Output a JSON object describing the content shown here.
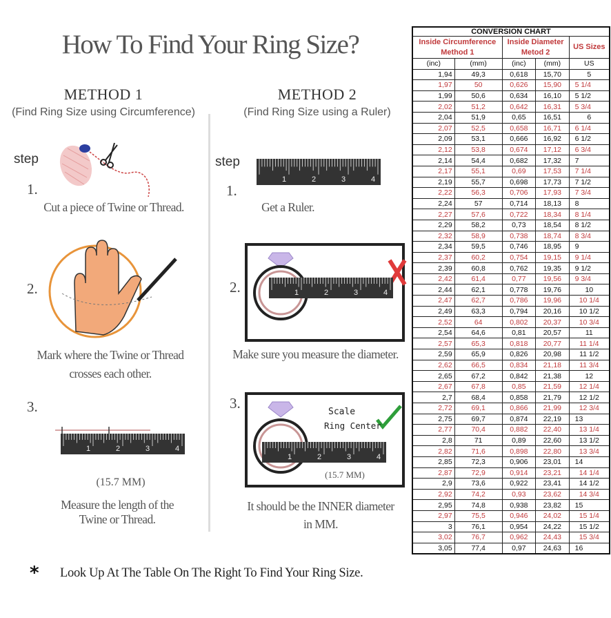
{
  "title": "How To Find Your Ring Size?",
  "method1": {
    "heading": "METHOD 1",
    "subtitle": "(Find Ring Size using Circumference)",
    "step_label": "step",
    "steps": [
      {
        "num": "1.",
        "lines": [
          "Cut a piece of  Twine or Thread."
        ]
      },
      {
        "num": "2.",
        "lines": [
          "Mark where the Twine or Thread",
          "crosses each other."
        ]
      },
      {
        "num": "3.",
        "measure": "(15.7 MM)",
        "lines": [
          "Measure the length of the",
          "Twine or Thread."
        ]
      }
    ]
  },
  "method2": {
    "heading": "METHOD 2",
    "subtitle": "(Find Ring Size using a Ruler)",
    "step_label": "step",
    "steps": [
      {
        "num": "1.",
        "lines": [
          "Get a Ruler."
        ]
      },
      {
        "num": "2.",
        "lines": [
          "Make sure you measure the diameter."
        ]
      },
      {
        "num": "3.",
        "scale_label": "Scale",
        "center_label": "Ring Center",
        "measure": "(15.7 MM)",
        "lines": [
          "It should be the INNER diameter",
          "in MM."
        ]
      }
    ]
  },
  "ruler_numbers": [
    "1",
    "2",
    "3",
    "4"
  ],
  "footer": {
    "marker": "*",
    "text": "Look Up At The Table On The Right To Find Your Ring Size."
  },
  "colors": {
    "accent_red": "#c0393b",
    "ruler": "#333333",
    "hand": "#f2a97a",
    "ring_outline": "#e8943a",
    "check": "#2e9e3a",
    "cross": "#e03a3a"
  },
  "icons": [
    "twine-spool-icon",
    "scissors-icon",
    "hand-icon",
    "pen-icon",
    "diamond-ring-icon",
    "cross-icon",
    "check-icon"
  ],
  "chart_data": {
    "type": "table",
    "title": "CONVERSION CHART",
    "groups": [
      "Inside Circumference Method 1",
      "Inside Diameter Metod 2",
      "US Sizes"
    ],
    "group_lines": [
      [
        "Inside Circumference",
        "Method 1"
      ],
      [
        "Inside Diameter",
        "Metod 2"
      ],
      [
        "US Sizes"
      ]
    ],
    "columns": [
      "(inc)",
      "(mm)",
      "(inc)",
      "(mm)",
      "US"
    ],
    "rows": [
      [
        "1,94",
        "49,3",
        "0,618",
        "15,70",
        "5"
      ],
      [
        "1,97",
        "50",
        "0,626",
        "15,90",
        "5 1/4"
      ],
      [
        "1,99",
        "50,6",
        "0,634",
        "16,10",
        "5 1/2"
      ],
      [
        "2,02",
        "51,2",
        "0,642",
        "16,31",
        "5 3/4"
      ],
      [
        "2,04",
        "51,9",
        "0,65",
        "16,51",
        "6"
      ],
      [
        "2,07",
        "52,5",
        "0,658",
        "16,71",
        "6 1/4"
      ],
      [
        "2,09",
        "53,1",
        "0,666",
        "16,92",
        "6 1/2"
      ],
      [
        "2,12",
        "53,8",
        "0,674",
        "17,12",
        "6 3/4"
      ],
      [
        "2,14",
        "54,4",
        "0,682",
        "17,32",
        "7"
      ],
      [
        "2,17",
        "55,1",
        "0,69",
        "17,53",
        "7 1/4"
      ],
      [
        "2,19",
        "55,7",
        "0,698",
        "17,73",
        "7 1/2"
      ],
      [
        "2,22",
        "56,3",
        "0,706",
        "17,93",
        "7 3/4"
      ],
      [
        "2,24",
        "57",
        "0,714",
        "18,13",
        "8"
      ],
      [
        "2,27",
        "57,6",
        "0,722",
        "18,34",
        "8 1/4"
      ],
      [
        "2,29",
        "58,2",
        "0,73",
        "18,54",
        "8 1/2"
      ],
      [
        "2,32",
        "58,9",
        "0,738",
        "18,74",
        "8 3/4"
      ],
      [
        "2,34",
        "59,5",
        "0,746",
        "18,95",
        "9"
      ],
      [
        "2,37",
        "60,2",
        "0,754",
        "19,15",
        "9 1/4"
      ],
      [
        "2,39",
        "60,8",
        "0,762",
        "19,35",
        "9 1/2"
      ],
      [
        "2,42",
        "61,4",
        "0,77",
        "19,56",
        "9 3/4"
      ],
      [
        "2,44",
        "62,1",
        "0,778",
        "19,76",
        "10"
      ],
      [
        "2,47",
        "62,7",
        "0,786",
        "19,96",
        "10 1/4"
      ],
      [
        "2,49",
        "63,3",
        "0,794",
        "20,16",
        "10 1/2"
      ],
      [
        "2,52",
        "64",
        "0,802",
        "20,37",
        "10 3/4"
      ],
      [
        "2,54",
        "64,6",
        "0,81",
        "20,57",
        "11"
      ],
      [
        "2,57",
        "65,3",
        "0,818",
        "20,77",
        "11 1/4"
      ],
      [
        "2,59",
        "65,9",
        "0,826",
        "20,98",
        "11 1/2"
      ],
      [
        "2,62",
        "66,5",
        "0,834",
        "21,18",
        "11 3/4"
      ],
      [
        "2,65",
        "67,2",
        "0,842",
        "21,38",
        "12"
      ],
      [
        "2,67",
        "67,8",
        "0,85",
        "21,59",
        "12 1/4"
      ],
      [
        "2,7",
        "68,4",
        "0,858",
        "21,79",
        "12 1/2"
      ],
      [
        "2,72",
        "69,1",
        "0,866",
        "21,99",
        "12 3/4"
      ],
      [
        "2,75",
        "69,7",
        "0,874",
        "22,19",
        "13"
      ],
      [
        "2,77",
        "70,4",
        "0,882",
        "22,40",
        "13 1/4"
      ],
      [
        "2,8",
        "71",
        "0,89",
        "22,60",
        "13 1/2"
      ],
      [
        "2,82",
        "71,6",
        "0,898",
        "22,80",
        "13 3/4"
      ],
      [
        "2,85",
        "72,3",
        "0,906",
        "23,01",
        "14"
      ],
      [
        "2,87",
        "72,9",
        "0,914",
        "23,21",
        "14 1/4"
      ],
      [
        "2,9",
        "73,6",
        "0,922",
        "23,41",
        "14 1/2"
      ],
      [
        "2,92",
        "74,2",
        "0,93",
        "23,62",
        "14 3/4"
      ],
      [
        "2,95",
        "74,8",
        "0,938",
        "23,82",
        "15"
      ],
      [
        "2,97",
        "75,5",
        "0,946",
        "24,02",
        "15 1/4"
      ],
      [
        "3",
        "76,1",
        "0,954",
        "24,22",
        "15 1/2"
      ],
      [
        "3,02",
        "76,7",
        "0,962",
        "24,43",
        "15 3/4"
      ],
      [
        "3,05",
        "77,4",
        "0,97",
        "24,63",
        "16"
      ]
    ],
    "row_colors": "alternating black / red"
  }
}
